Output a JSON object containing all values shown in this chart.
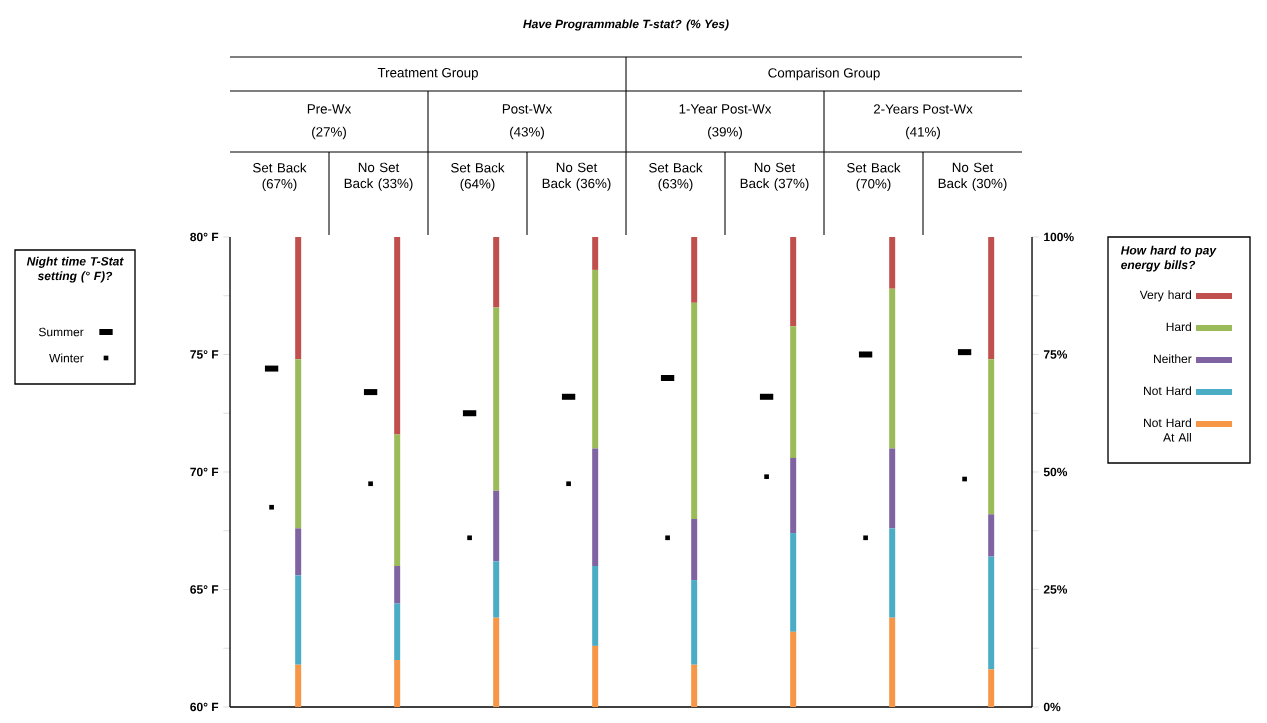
{
  "chart_data": {
    "type": "bar",
    "title": "Have Programmable  T-stat? (% Yes)",
    "categories": [
      "Set Back (67%)",
      "No Set Back (33%)",
      "Set Back (64%)",
      "No Set Back (36%)",
      "Set Back (63%)",
      "No Set Back (37%)",
      "Set Back (70%)",
      "No Set Back (30%)"
    ],
    "annotations": [
      "Treatment Group",
      "Comparison Group",
      "Pre-Wx",
      "(27%)",
      "Post-Wx",
      "(43%)",
      "1-Year Post-Wx",
      "(39%)",
      "2-Years Post-Wx",
      "(41%)",
      "Night time T-Stat setting (° F)?"
    ],
    "stacked": true,
    "series": [
      {
        "name": "Not Hard At All",
        "color": "#f79646",
        "axis": "y2",
        "values": [
          9,
          10,
          19,
          13,
          9,
          16,
          19,
          8
        ]
      },
      {
        "name": "Not Hard",
        "color": "#4bacc6",
        "axis": "y2",
        "values": [
          19,
          12,
          12,
          17,
          18,
          21,
          19,
          24
        ]
      },
      {
        "name": "Neither",
        "color": "#8064a2",
        "axis": "y2",
        "values": [
          10,
          8,
          15,
          25,
          13,
          16,
          17,
          9
        ]
      },
      {
        "name": "Hard",
        "color": "#9bbb59",
        "axis": "y2",
        "values": [
          36,
          28,
          39,
          38,
          46,
          28,
          34,
          33
        ]
      },
      {
        "name": "Very hard",
        "color": "#c0504d",
        "axis": "y2",
        "values": [
          26,
          42,
          15,
          7,
          14,
          19,
          11,
          26
        ]
      },
      {
        "name": "Summer",
        "type": "scatter",
        "color": "#000000",
        "line_style": "solid",
        "values": [
          74.4,
          73.4,
          72.5,
          73.2,
          74.0,
          73.2,
          75.0,
          75.1
        ]
      },
      {
        "name": "Winter",
        "type": "scatter",
        "color": "#000000",
        "line_style": "dotted",
        "values": [
          68.5,
          69.5,
          67.2,
          69.5,
          67.2,
          69.8,
          67.2,
          69.7
        ]
      }
    ],
    "legend_title": "How hard to pay energy bills?",
    "legend": "right",
    "ylim": [
      60,
      80
    ],
    "yticks": [
      {
        "value": 60,
        "label": "60° F"
      },
      {
        "value": 62.5,
        "label": null
      },
      {
        "value": 65,
        "label": "65° F"
      },
      {
        "value": 67.5,
        "label": null
      },
      {
        "value": 70,
        "label": "70° F"
      },
      {
        "value": 72.5,
        "label": null
      },
      {
        "value": 75,
        "label": "75° F"
      },
      {
        "value": 77.5,
        "label": null
      },
      {
        "value": 80,
        "label": "80° F"
      }
    ],
    "y2lim": [
      0,
      100
    ],
    "y2ticks": [
      {
        "value": 0,
        "label": "0%"
      },
      {
        "value": 12.5,
        "label": null
      },
      {
        "value": 25,
        "label": "25%"
      },
      {
        "value": 37.5,
        "label": null
      },
      {
        "value": 50,
        "label": "50%"
      },
      {
        "value": 62.5,
        "label": null
      },
      {
        "value": 75,
        "label": "75%"
      },
      {
        "value": 87.5,
        "label": null
      },
      {
        "value": 100,
        "label": "100%"
      }
    ]
  }
}
